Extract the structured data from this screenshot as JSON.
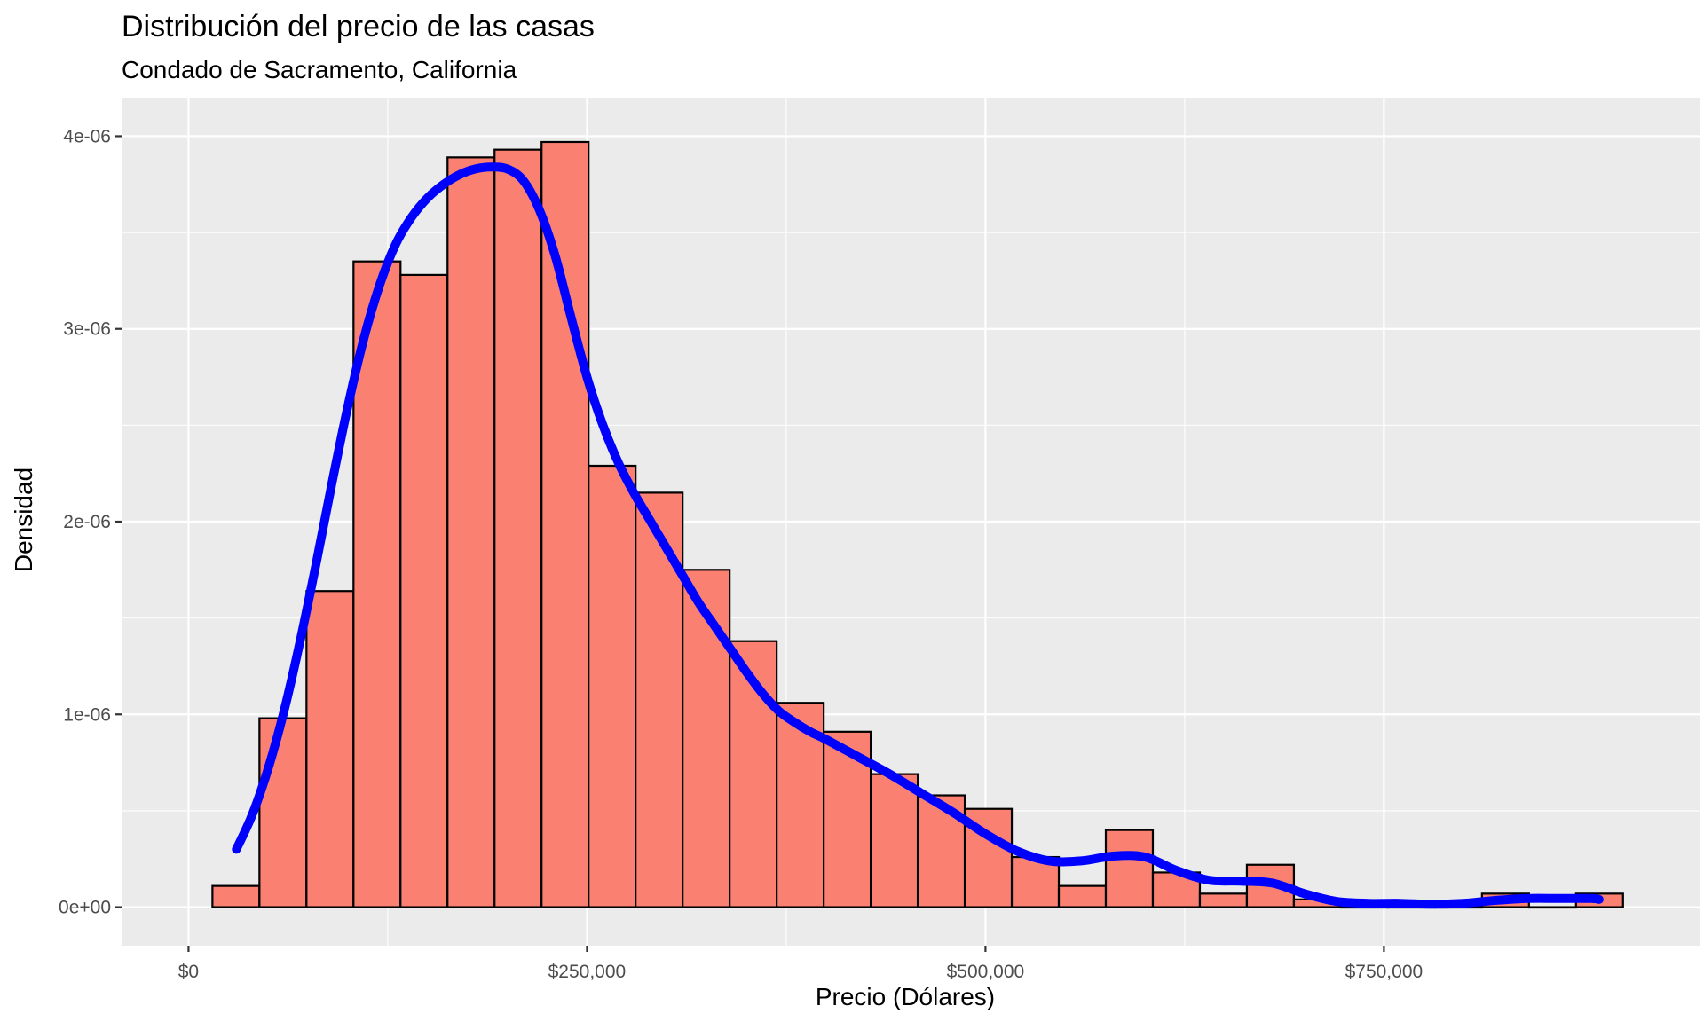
{
  "chart_data": {
    "type": "bar",
    "title": "Distribución del precio de las casas",
    "subtitle": "Condado de Sacramento, California",
    "xlabel": "Precio (Dólares)",
    "ylabel": "Densidad",
    "xlim": [
      -42000,
      948000
    ],
    "ylim": [
      -2e-07,
      4.2e-06
    ],
    "x_ticks": [
      0,
      250000,
      500000,
      750000
    ],
    "x_tick_labels": [
      "$0",
      "$250,000",
      "$500,000",
      "$750,000"
    ],
    "y_ticks": [
      0,
      1e-06,
      2e-06,
      3e-06,
      4e-06
    ],
    "y_tick_labels": [
      "0e+00",
      "1e-06",
      "2e-06",
      "3e-06",
      "4e-06"
    ],
    "grid": true,
    "background": "#EBEBEB",
    "bar_fill": "#FA8072",
    "bar_outline": "#000000",
    "density_color": "#0000FF",
    "bin_edges": [
      15000,
      44500,
      74000,
      103500,
      133000,
      162500,
      192000,
      221500,
      251000,
      280500,
      310000,
      339500,
      369000,
      398500,
      428000,
      457500,
      487000,
      516500,
      546000,
      575500,
      605000,
      634500,
      664000,
      693500,
      723000,
      752500,
      782000,
      811500,
      841000,
      870500,
      900000
    ],
    "values": [
      1.1e-07,
      9.8e-07,
      1.64e-06,
      3.35e-06,
      3.28e-06,
      3.89e-06,
      3.93e-06,
      3.97e-06,
      2.29e-06,
      2.15e-06,
      1.75e-06,
      1.38e-06,
      1.06e-06,
      9.1e-07,
      6.9e-07,
      5.8e-07,
      5.1e-07,
      2.6e-07,
      1.1e-07,
      4e-07,
      1.8e-07,
      7e-08,
      2.2e-07,
      4e-08,
      0,
      0,
      0,
      7e-08,
      0,
      7e-08
    ],
    "density": {
      "x": [
        30000,
        40000,
        50000,
        60000,
        70000,
        80000,
        90000,
        100000,
        110000,
        120000,
        130000,
        140000,
        150000,
        160000,
        170000,
        180000,
        190000,
        200000,
        210000,
        220000,
        230000,
        240000,
        250000,
        260000,
        270000,
        280000,
        290000,
        300000,
        310000,
        320000,
        330000,
        340000,
        350000,
        360000,
        370000,
        380000,
        390000,
        400000,
        420000,
        440000,
        460000,
        480000,
        500000,
        520000,
        540000,
        560000,
        580000,
        600000,
        620000,
        640000,
        660000,
        680000,
        700000,
        720000,
        740000,
        760000,
        780000,
        800000,
        820000,
        840000,
        860000,
        880000,
        885000
      ],
      "y": [
        3e-07,
        4.8e-07,
        7.2e-07,
        1.02e-06,
        1.38e-06,
        1.78e-06,
        2.2e-06,
        2.6e-06,
        2.95e-06,
        3.23e-06,
        3.44e-06,
        3.58e-06,
        3.68e-06,
        3.75e-06,
        3.8e-06,
        3.83e-06,
        3.84e-06,
        3.83e-06,
        3.77e-06,
        3.62e-06,
        3.38e-06,
        3.06e-06,
        2.75e-06,
        2.5e-06,
        2.3e-06,
        2.14e-06,
        2e-06,
        1.86e-06,
        1.72e-06,
        1.58e-06,
        1.46e-06,
        1.34e-06,
        1.22e-06,
        1.11e-06,
        1.02e-06,
        9.6e-07,
        9.1e-07,
        8.7e-07,
        7.8e-07,
        6.9e-07,
        5.9e-07,
        4.9e-07,
        3.8e-07,
        2.9e-07,
        2.4e-07,
        2.4e-07,
        2.65e-07,
        2.6e-07,
        1.9e-07,
        1.4e-07,
        1.35e-07,
        1.25e-07,
        7e-08,
        3e-08,
        2e-08,
        2e-08,
        1.5e-08,
        2e-08,
        3.5e-08,
        4.5e-08,
        4.5e-08,
        4.5e-08,
        4e-08
      ]
    }
  }
}
